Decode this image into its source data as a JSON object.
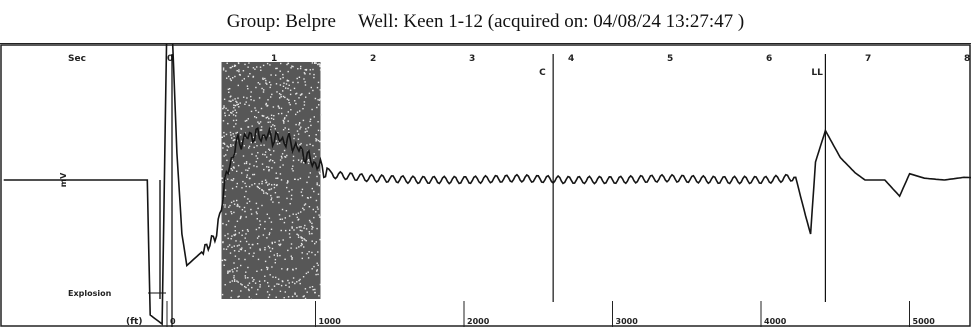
{
  "header": {
    "group_label": "Group: Belpre",
    "well_label": "Well: Keen 1-12 (acquired on: 04/08/24 13:27:47 )"
  },
  "chart_data": {
    "type": "line",
    "title": "Group: Belpre    Well: Keen 1-12 (acquired on: 04/08/24 13:27:47 )",
    "top_axis": {
      "label": "Sec",
      "ticks": [
        "0",
        "1",
        "2",
        "3",
        "4",
        "5",
        "6",
        "7",
        "8"
      ]
    },
    "bottom_axis": {
      "label": "(ft)",
      "ticks": [
        "0",
        "1000",
        "2000",
        "3000",
        "4000",
        "5000"
      ]
    },
    "ylabel": "mV",
    "markers": [
      {
        "label": "Explosion",
        "x": 0.0
      },
      {
        "label": "C",
        "x": 3.85
      },
      {
        "label": "LL",
        "x": 6.6
      }
    ],
    "shaded_region": {
      "from": 0.5,
      "to": 1.5
    },
    "xlim": [
      -1.7,
      8.2
    ],
    "ylim": [
      -1,
      1
    ],
    "series": [
      {
        "x": [
          -1.7,
          -0.25,
          -0.22,
          -0.1,
          -0.05,
          0.0,
          0.05,
          0.1,
          0.15,
          0.25,
          0.35,
          0.45,
          0.55,
          0.65,
          0.8,
          1.0,
          1.2,
          1.4,
          1.6,
          2.0,
          2.5,
          3.0,
          3.5,
          4.0,
          4.5,
          5.0,
          5.5,
          6.0,
          6.3,
          6.4,
          6.45,
          6.5,
          6.6,
          6.75,
          6.9,
          7.0,
          7.2,
          7.35,
          7.45,
          7.6,
          7.8,
          8.0,
          8.2
        ],
        "y": [
          0.0,
          0.0,
          -1.5,
          -1.6,
          1.9,
          1.7,
          0.3,
          -0.6,
          -0.95,
          -0.85,
          -0.75,
          -0.6,
          0.05,
          0.4,
          0.5,
          0.48,
          0.42,
          0.22,
          0.06,
          0.02,
          0.0,
          0.0,
          0.02,
          0.0,
          0.0,
          0.02,
          0.0,
          0.0,
          0.03,
          -0.4,
          -0.6,
          0.2,
          0.55,
          0.25,
          0.08,
          0.0,
          0.0,
          -0.18,
          0.07,
          0.02,
          0.0,
          0.03,
          0.02
        ]
      }
    ]
  }
}
